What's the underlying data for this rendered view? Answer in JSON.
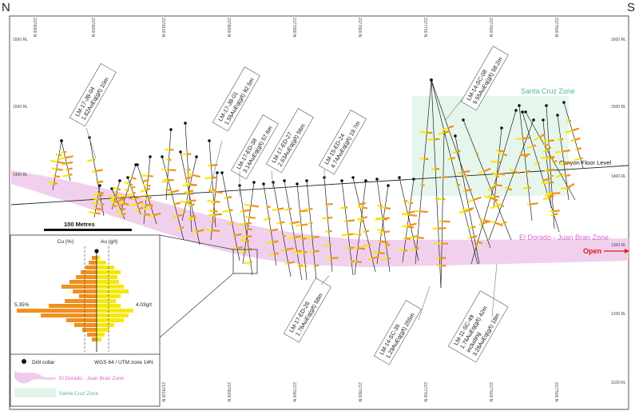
{
  "corners": {
    "left": "N",
    "right": "S"
  },
  "northing_labels": [
    "2178300 N",
    "2178200 N",
    "2178100 N",
    "2178000 N",
    "2177900 N",
    "2177800 N",
    "2177700 N",
    "2177600 N",
    "2177500 N"
  ],
  "rl_labels_left": [
    "1600 RL",
    "1500 RL",
    "1400 RL"
  ],
  "rl_labels_right": [
    "1600 RL",
    "1500 RL",
    "1400 RL",
    "1300 RL",
    "1200 RL",
    "1100 RL"
  ],
  "scale_bar": {
    "label": "100 Metres"
  },
  "zones": {
    "santa_cruz": {
      "label": "Santa Cruz Zone",
      "color": "#54b895"
    },
    "el_dorado": {
      "label": "El Dorado - Juan Bran Zone",
      "color": "#d968cf"
    }
  },
  "canyon_floor": {
    "label": "Canyon Floor Level"
  },
  "open_label": {
    "text": "Open",
    "color": "#e31b1b"
  },
  "callouts": [
    {
      "lines": [
        "LM-17-JB-04",
        "1.82AuEq(g/t) 10m"
      ]
    },
    {
      "lines": [
        "LM-17-JB-01",
        "1.55AuEq(g/t) 92.5m"
      ]
    },
    {
      "lines": [
        "LM-17-ED-38",
        "3.14AuEq(g/t) 57.6m"
      ]
    },
    {
      "lines": [
        "LM-17-ED-27",
        "2.63AuEq(g/t) 56m"
      ]
    },
    {
      "lines": [
        "LM-15-ED-24",
        "4.74AuEq(g/t) 19.7m"
      ]
    },
    {
      "lines": [
        "LM-14-SC-08",
        "5.55AuEq(g/t) 58.2m"
      ]
    },
    {
      "lines": [
        "LM-17-ED-26",
        "1.76AuEq(g/t) 58m"
      ]
    },
    {
      "lines": [
        "LM-14-SC-36",
        "1.29AuEq(g/t) 255m"
      ]
    },
    {
      "lines": [
        "LM-11-SC-49",
        "1.76AuEq(g/t) 42m",
        "including",
        "3.28AuEq(g/t) 18m"
      ]
    }
  ],
  "inset": {
    "cu_label": "Cu (%)",
    "au_label": "Au (g/t)",
    "cu_max": "5.35%",
    "au_max": "4.03g/t",
    "cu_color": "#f0901e",
    "au_color": "#f5e80c"
  },
  "legend": {
    "drill_collar": "Drill collar",
    "projection": "WGS 84 / UTM zone 14N",
    "el_dorado": "El Dorado - Juan Bran Zone",
    "santa_cruz": "Santa Cruz Zone"
  }
}
